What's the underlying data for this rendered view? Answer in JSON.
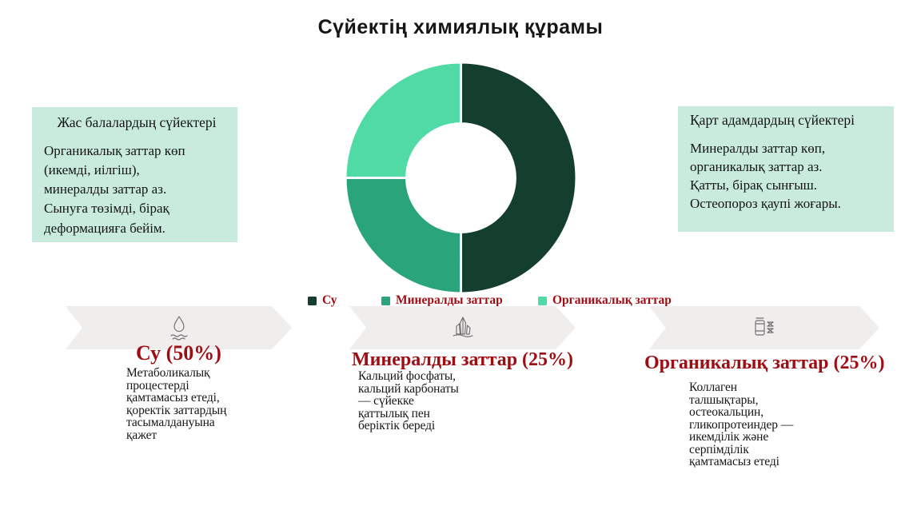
{
  "slide": {
    "title": "Сүйектің химиялық құрамы"
  },
  "info_boxes": {
    "left": {
      "heading": "Жас балалардың сүйектері",
      "body": "Органикалық заттар көп\n(икемді, иілгіш),\nминералды заттар аз.\nСынуға төзімді, бірақ\nдеформацияға бейім."
    },
    "right": {
      "heading": "Қарт адамдардың сүйектері",
      "body": "Минералды заттар көп,\nорганикалық заттар аз.\nҚатты, бірақ сынғыш.\nОстеопороз қаупі жоғары."
    }
  },
  "chart_data": {
    "type": "pie",
    "subtype": "donut",
    "title": "Сүйектің химиялық құрамы",
    "categories": [
      "Су",
      "Минералды заттар",
      "Органикалық заттар"
    ],
    "values": [
      50,
      25,
      25
    ],
    "colors": [
      "#143f2e",
      "#2aa57b",
      "#50dba6"
    ],
    "start_angle_deg": -90,
    "direction": "clockwise",
    "inner_radius_ratio": 0.47,
    "segment_gap_color": "#ffffff",
    "legend_position": "bottom"
  },
  "sections": [
    {
      "icon": "water-drop",
      "title": "Су (50%)",
      "description": "Метаболикалық\nпроцестерді\nқамтамасыз етеді,\nқоректік заттардың\nтасымалдануына\nқажет"
    },
    {
      "icon": "mineral-crystal",
      "title": "Минералды заттар (25%)",
      "description": "Кальций фосфаты,\nкальций карбонаты\n— сүйекке\nқаттылық пен\nберіктік береді"
    },
    {
      "icon": "collagen-dna",
      "title": "Органикалық заттар (25%)",
      "description": "Коллаген\nталшықтары,\nостеокальцин,\nгликопротеиндер —\nикемділік және\nсерпімділік\nқамтамасыз етеді"
    }
  ],
  "colors": {
    "accent_red": "#9e0d14",
    "info_box_bg": "#c9ebde",
    "banner_bg": "#f0eded",
    "icon_gray": "#6f6f6f"
  }
}
